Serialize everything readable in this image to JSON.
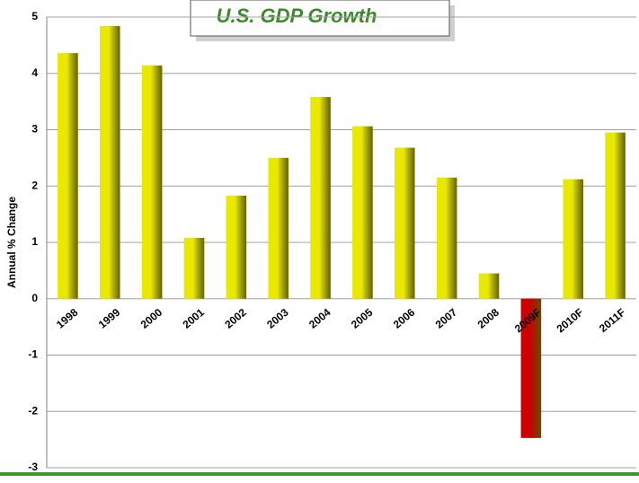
{
  "chart_data": {
    "type": "bar",
    "title": "U.S. GDP Growth",
    "y_label": "Annual % Change",
    "categories": [
      "1998",
      "1999",
      "2000",
      "2001",
      "2002",
      "2003",
      "2004",
      "2005",
      "2006",
      "2007",
      "2008",
      "2009F",
      "2010F",
      "2011F"
    ],
    "values": [
      4.36,
      4.84,
      4.14,
      1.08,
      1.83,
      2.5,
      3.58,
      3.06,
      2.68,
      2.15,
      0.45,
      -2.47,
      2.12,
      2.95
    ],
    "colors": [
      "#e8e800",
      "#e8e800",
      "#e8e800",
      "#e8e800",
      "#e8e800",
      "#e8e800",
      "#e8e800",
      "#e8e800",
      "#e8e800",
      "#e8e800",
      "#e8e800",
      "#cc0000",
      "#e8e800",
      "#e8e800"
    ],
    "ylim": [
      -3,
      5
    ],
    "yticks": [
      -3,
      -2,
      -1,
      0,
      1,
      2,
      3,
      4,
      5
    ],
    "grid": true
  }
}
